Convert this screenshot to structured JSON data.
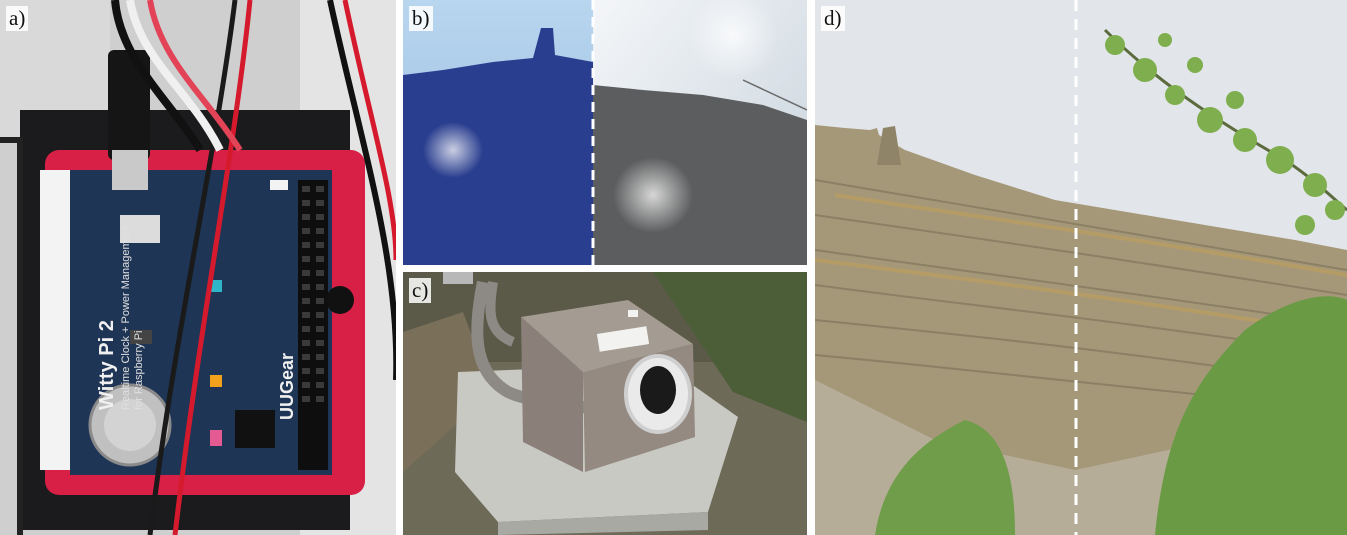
{
  "figure": {
    "panels": [
      {
        "id": "a",
        "label": "a)"
      },
      {
        "id": "b",
        "label": "b)"
      },
      {
        "id": "c",
        "label": "c)"
      },
      {
        "id": "d",
        "label": "d)"
      }
    ]
  },
  "board_text": {
    "name": "Witty Pi 2",
    "line1": "Realtime Clock + Power Management",
    "line2": "for Raspberry Pi",
    "brand": "UUGear"
  },
  "colors": {
    "case_red": "#d81f45",
    "pcb_blue": "#1f3556",
    "sky_bright": "#e6edf4",
    "rock_tan": "#a59879",
    "vegetation_green": "#6f9d4a",
    "box_grey": "#948a82",
    "concrete": "#c9c9c4"
  }
}
